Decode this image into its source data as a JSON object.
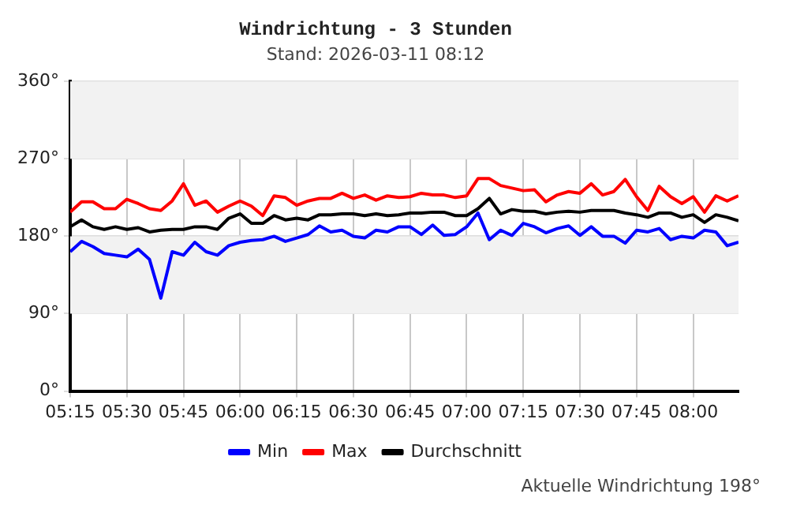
{
  "chart_data": {
    "type": "line",
    "title": "Windrichtung - 3 Stunden",
    "subtitle": "Stand: 2026-03-11 08:12",
    "x": [
      5.25,
      5.3,
      5.35,
      5.4,
      5.45,
      5.5,
      5.55,
      5.6,
      5.65,
      5.7,
      5.75,
      5.8,
      5.85,
      5.9,
      5.95,
      6,
      6.05,
      6.1,
      6.15,
      6.2,
      6.25,
      6.3,
      6.35,
      6.4,
      6.45,
      6.5,
      6.55,
      6.6,
      6.65,
      6.7,
      6.75,
      6.8,
      6.85,
      6.9,
      6.95,
      7,
      7.05,
      7.1,
      7.15,
      7.2,
      7.25,
      7.3,
      7.35,
      7.4,
      7.45,
      7.5,
      7.55,
      7.6,
      7.65,
      7.7,
      7.75,
      7.8,
      7.85,
      7.9,
      7.95,
      8,
      8.05,
      8.1,
      8.15,
      8.2
    ],
    "series": [
      {
        "name": "Min",
        "color": "#0000ff",
        "values": [
          162,
          174,
          168,
          160,
          158,
          156,
          165,
          153,
          108,
          162,
          158,
          173,
          162,
          158,
          169,
          173,
          175,
          176,
          180,
          174,
          178,
          182,
          192,
          185,
          187,
          180,
          178,
          187,
          185,
          191,
          191,
          182,
          193,
          181,
          182,
          191,
          207,
          176,
          187,
          181,
          195,
          191,
          184,
          189,
          192,
          181,
          191,
          180,
          180,
          172,
          187,
          185,
          189,
          176,
          180,
          178,
          187,
          185,
          169,
          173
        ]
      },
      {
        "name": "Max",
        "color": "#ff0000",
        "values": [
          208,
          220,
          220,
          212,
          212,
          223,
          218,
          212,
          210,
          221,
          241,
          216,
          221,
          208,
          215,
          221,
          215,
          204,
          227,
          225,
          216,
          221,
          224,
          224,
          230,
          224,
          228,
          222,
          227,
          225,
          226,
          230,
          228,
          228,
          225,
          227,
          247,
          247,
          239,
          236,
          233,
          234,
          220,
          228,
          232,
          230,
          241,
          228,
          232,
          246,
          226,
          210,
          238,
          226,
          218,
          226,
          208,
          227,
          221,
          227
        ]
      },
      {
        "name": "Durchschnitt",
        "color": "#000000",
        "values": [
          191,
          199,
          191,
          188,
          191,
          188,
          190,
          185,
          187,
          188,
          188,
          191,
          191,
          188,
          201,
          206,
          195,
          195,
          204,
          199,
          201,
          199,
          205,
          205,
          206,
          206,
          204,
          206,
          204,
          205,
          207,
          207,
          208,
          208,
          204,
          204,
          212,
          224,
          206,
          211,
          209,
          209,
          206,
          208,
          209,
          208,
          210,
          210,
          210,
          207,
          205,
          202,
          207,
          207,
          202,
          205,
          196,
          205,
          202,
          198
        ]
      }
    ],
    "xlim": [
      5.25,
      8.2
    ],
    "xticks": [
      {
        "value": 5.25,
        "label": "05:15"
      },
      {
        "value": 5.5,
        "label": "05:30"
      },
      {
        "value": 5.75,
        "label": "05:45"
      },
      {
        "value": 6,
        "label": "06:00"
      },
      {
        "value": 6.25,
        "label": "06:15"
      },
      {
        "value": 6.5,
        "label": "06:30"
      },
      {
        "value": 6.75,
        "label": "06:45"
      },
      {
        "value": 7,
        "label": "07:00"
      },
      {
        "value": 7.25,
        "label": "07:15"
      },
      {
        "value": 7.5,
        "label": "07:30"
      },
      {
        "value": 7.75,
        "label": "07:45"
      },
      {
        "value": 8,
        "label": "08:00"
      }
    ],
    "ylim": [
      0,
      360
    ],
    "yticks": [
      {
        "value": 0,
        "label": "0°"
      },
      {
        "value": 90,
        "label": "90°"
      },
      {
        "value": 180,
        "label": "180°"
      },
      {
        "value": 270,
        "label": "270°"
      },
      {
        "value": 360,
        "label": "360°"
      }
    ],
    "bands": [
      {
        "axis": "y",
        "from": 90,
        "to": 180,
        "color": "#f2f2f2"
      },
      {
        "axis": "y",
        "from": 270,
        "to": 360,
        "color": "#f2f2f2"
      }
    ],
    "grid": true,
    "legend": "bottom",
    "marker": "none",
    "line_style": "solid",
    "annotations": [
      "Aktuelle Windrichtung 198°"
    ]
  }
}
